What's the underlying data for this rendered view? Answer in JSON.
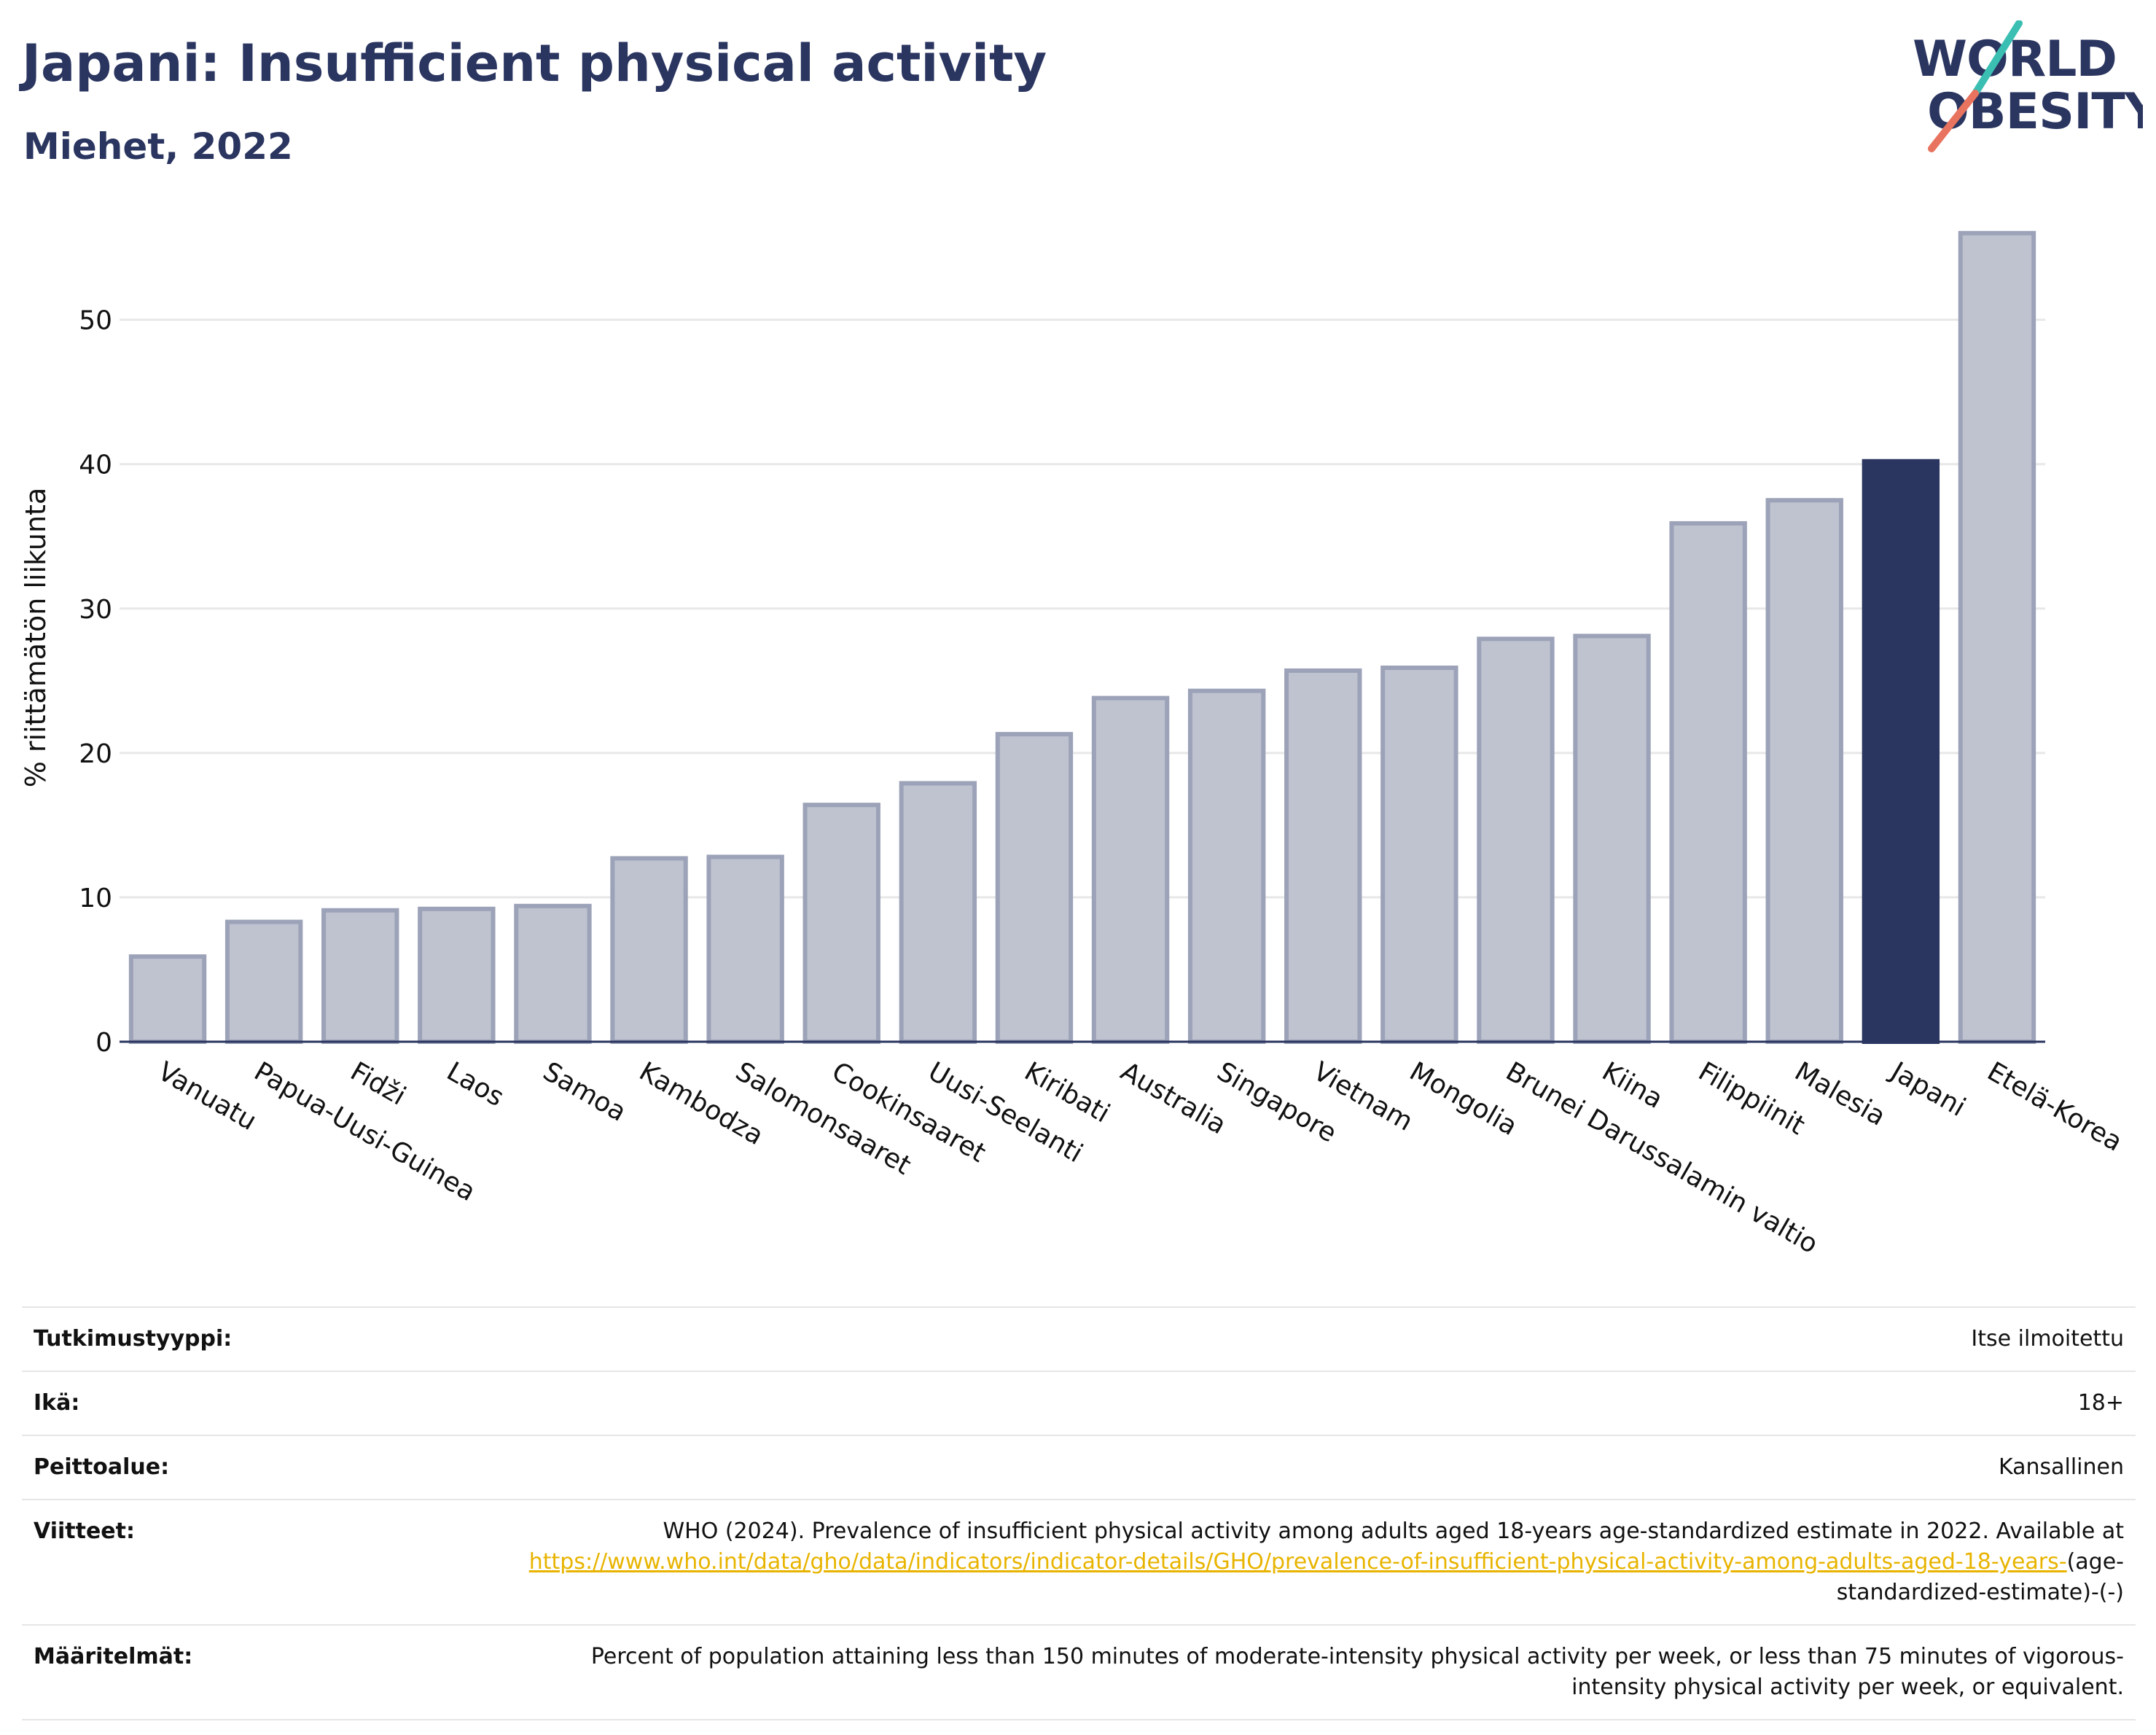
{
  "header": {
    "title": "Japani: Insufficient physical activity",
    "subtitle": "Miehet, 2022"
  },
  "logo": {
    "line1": "WORLD",
    "line2": "OBESITY",
    "colors": {
      "text": "#2a3560",
      "slash_teal": "#3bbfb3",
      "slash_coral": "#e8735f"
    }
  },
  "chart_data": {
    "type": "bar",
    "title": "",
    "xlabel": "",
    "ylabel": "% riittämätön liikunta",
    "ylim": [
      0,
      57
    ],
    "yticks": [
      0,
      10,
      20,
      30,
      40,
      50
    ],
    "grid": true,
    "highlight": "Japani",
    "colors": {
      "bar": "#bfc3d0",
      "bar_edge": "#9ca2b8",
      "highlight": "#2a3560",
      "grid": "#e8e8e8",
      "axis": "#2a3560"
    },
    "categories": [
      "Vanuatu",
      "Papua-Uusi-Guinea",
      "Fidži",
      "Laos",
      "Samoa",
      "Kambodza",
      "Salomonsaaret",
      "Cookinsaaret",
      "Uusi-Seelanti",
      "Kiribati",
      "Australia",
      "Singapore",
      "Vietnam",
      "Mongolia",
      "Brunei Darussalamin valtio",
      "Kiina",
      "Filippiinit",
      "Malesia",
      "Japani",
      "Etelä-Korea"
    ],
    "values": [
      5.9,
      8.3,
      9.1,
      9.2,
      9.4,
      12.7,
      12.8,
      16.4,
      17.9,
      21.3,
      23.8,
      24.3,
      25.7,
      25.9,
      27.9,
      28.1,
      35.9,
      37.5,
      40.2,
      56.0
    ]
  },
  "meta": {
    "rows": [
      {
        "label": "Tutkimustyyppi:",
        "value": "Itse ilmoitettu"
      },
      {
        "label": "Ikä:",
        "value": "18+"
      },
      {
        "label": "Peittoalue:",
        "value": "Kansallinen"
      }
    ],
    "references": {
      "label": "Viitteet:",
      "text": "WHO (2024). Prevalence of insufficient physical activity among adults aged 18-years age-standardized estimate in 2022. Available at",
      "link": "https://www.who.int/data/gho/data/indicators/indicator-details/GHO/prevalence-of-insufficient-physical-activity-among-adults-aged-18-years-",
      "suffix": "(age-standardized-estimate)-(-)"
    },
    "definitions": {
      "label": "Määritelmät:",
      "value": "Percent of population attaining less than 150 minutes of moderate-intensity physical activity per week, or less than 75 minutes of vigorous-intensity physical activity per week, or equivalent."
    }
  }
}
